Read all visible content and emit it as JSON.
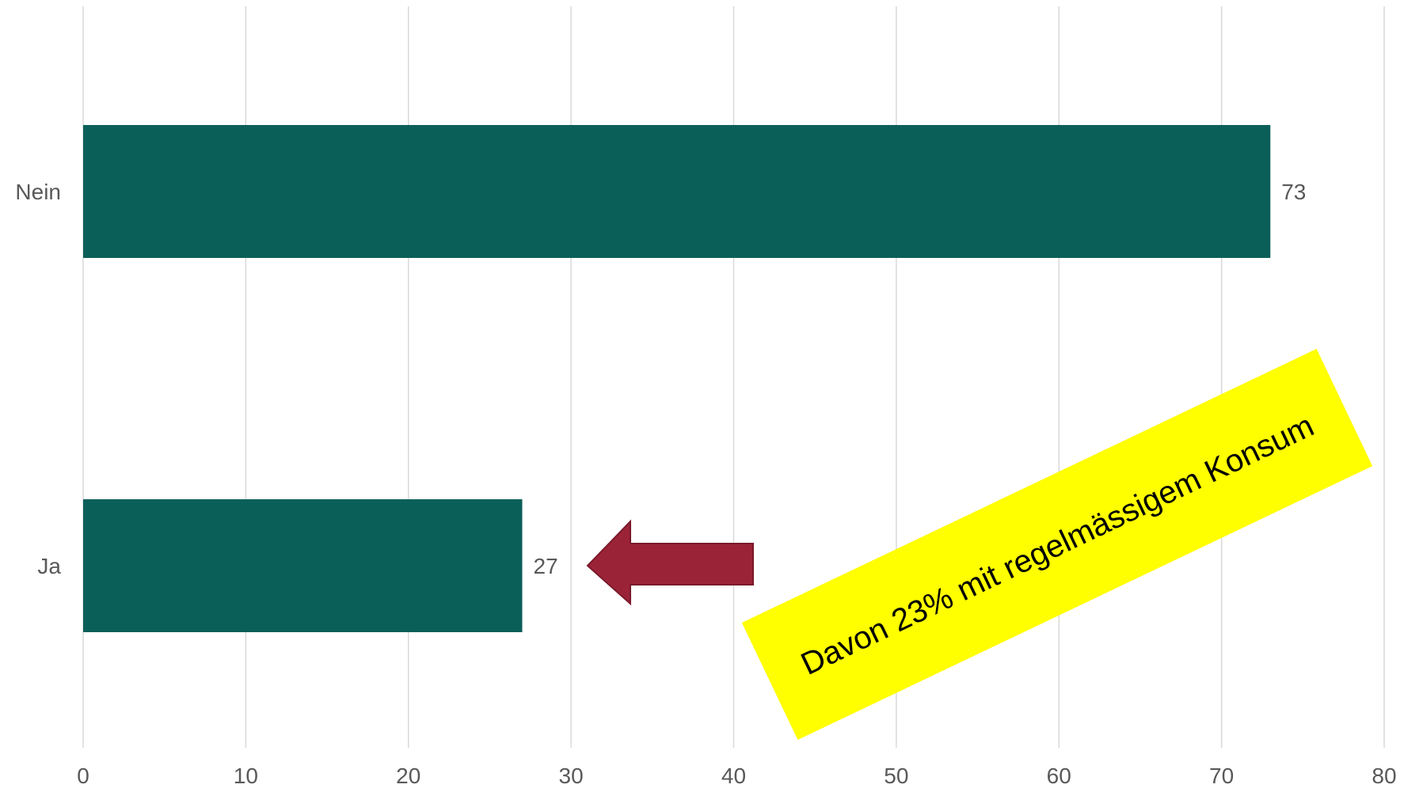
{
  "chart_data": {
    "type": "bar",
    "orientation": "horizontal",
    "categories": [
      "Nein",
      "Ja"
    ],
    "values": [
      73,
      27
    ],
    "data_labels": [
      "73",
      "27"
    ],
    "xlim": [
      0,
      80
    ],
    "xticks": [
      0,
      10,
      20,
      30,
      40,
      50,
      60,
      70,
      80
    ],
    "grid": "vertical",
    "legend": "none",
    "annotation": {
      "text": "Davon 23% mit regelmässigem Konsum",
      "points_to": "Ja"
    }
  },
  "colors": {
    "bar": "#0b5f59",
    "grid": "#d9d9d9",
    "text": "#595959",
    "arrow_fill": "#9b2338",
    "arrow_stroke": "#7a1a2b",
    "annotation_bg": "#ffff00",
    "annotation_text": "#000000"
  }
}
